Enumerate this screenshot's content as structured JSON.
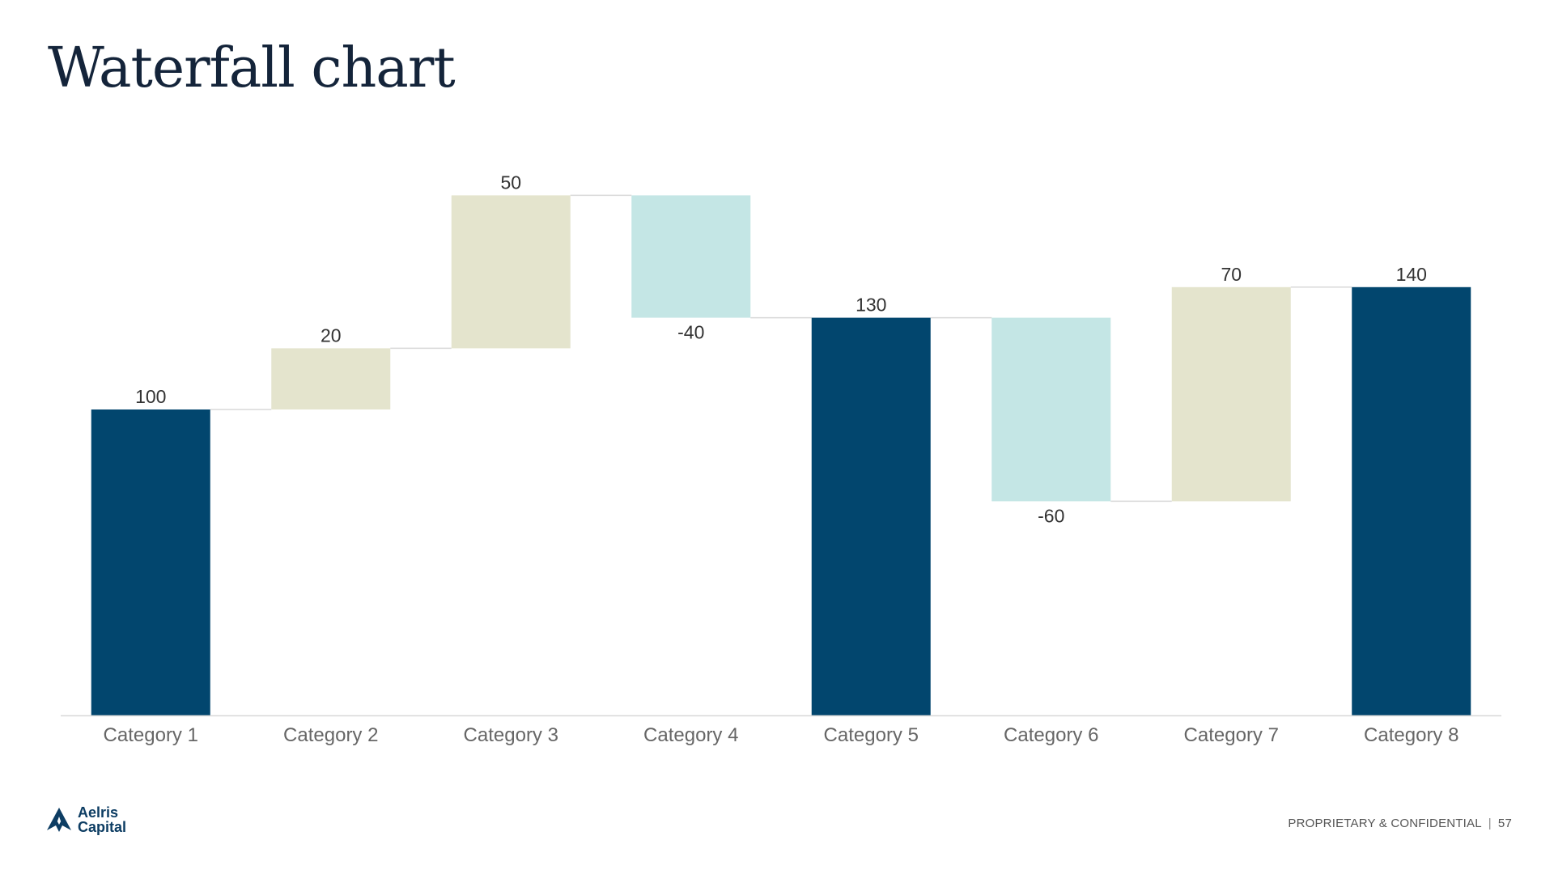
{
  "slide": {
    "title": "Waterfall chart"
  },
  "chart_data": {
    "type": "bar",
    "subtype": "waterfall",
    "categories": [
      "Category 1",
      "Category 2",
      "Category 3",
      "Category 4",
      "Category 5",
      "Category 6",
      "Category 7",
      "Category 8"
    ],
    "values": [
      100,
      20,
      50,
      -40,
      130,
      -60,
      70,
      140
    ],
    "kinds": [
      "total",
      "increase",
      "increase",
      "decrease",
      "total",
      "decrease",
      "increase",
      "total"
    ],
    "data_labels": [
      "100",
      "20",
      "50",
      "-40",
      "130",
      "-60",
      "70",
      "140"
    ],
    "ylim": [
      0,
      170
    ],
    "grid": false,
    "legend": "none",
    "colors": {
      "total": "#02466e",
      "increase": "#e4e4cd",
      "decrease": "#c4e6e5",
      "connector": "#d9d9d9",
      "axis": "#d9d9d9"
    }
  },
  "brand": {
    "logo_name": "Aelris",
    "logo_sub": "Capital",
    "logo_icon": "star-triangle-icon",
    "logo_color": "#0d3d63"
  },
  "footer": {
    "confidential": "PROPRIETARY & CONFIDENTIAL",
    "separator": "|",
    "page_number": "57"
  }
}
